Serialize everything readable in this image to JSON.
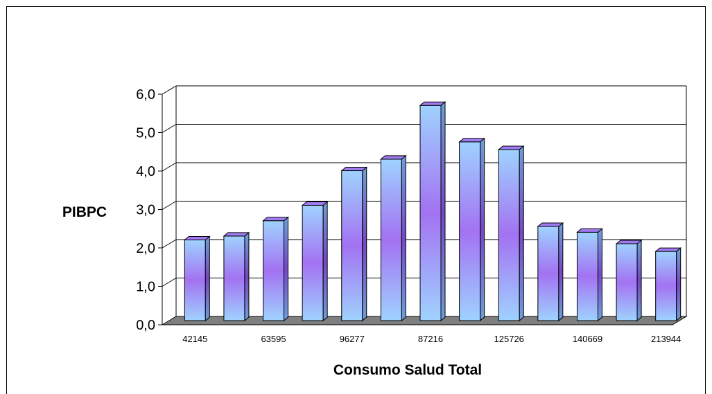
{
  "chart_data": {
    "type": "bar",
    "categories": [
      "42145",
      "",
      "63595",
      "",
      "96277",
      "",
      "87216",
      "",
      "125726",
      "",
      "140669",
      "",
      "213944"
    ],
    "values": [
      2.1,
      2.2,
      2.6,
      3.0,
      3.9,
      4.2,
      5.6,
      4.65,
      4.45,
      2.45,
      2.3,
      2.0,
      1.8
    ],
    "xlabel": "Consumo Salud Total",
    "ylabel": "PIBPC",
    "ylim": [
      0,
      6
    ],
    "yticks": [
      "0,0",
      "1,0",
      "2,0",
      "3,0",
      "4,0",
      "5,0",
      "6,0"
    ],
    "grid": true,
    "style": "3d-cylinder-bars"
  }
}
